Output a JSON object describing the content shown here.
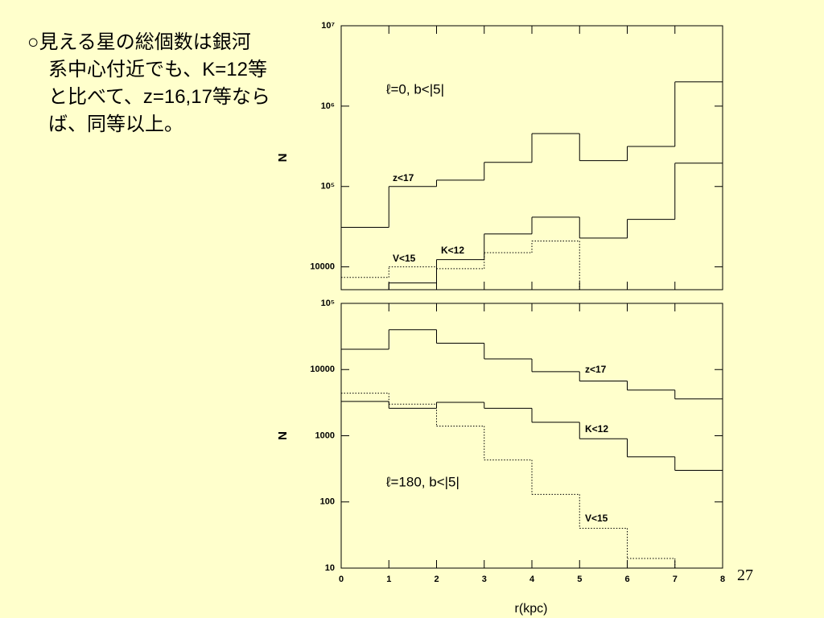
{
  "slide": {
    "lines": [
      "○見える星の総個数は銀河",
      "系中心付近でも、K=12等",
      "と比べて、z=16,17等なら",
      "ば、同等以上。"
    ],
    "page_number": "27"
  },
  "chart_data": [
    {
      "type": "histogram",
      "annotation": "ℓ=0,  b<|5|",
      "ylabel": "N",
      "log_y": true,
      "bins": [
        0,
        1,
        2,
        3,
        4,
        5,
        6,
        7,
        8
      ],
      "xlim": [
        0,
        8
      ],
      "xticks": [
        0,
        1,
        2,
        3,
        4,
        5,
        6,
        7,
        8
      ],
      "show_xtick_labels": false,
      "ylim": [
        5200,
        10000000
      ],
      "yticks": [
        10000,
        {
          "value": 100000,
          "label": "10⁵"
        },
        {
          "value": 1000000,
          "label": "10⁶"
        },
        {
          "value": 10000000,
          "label": "10⁷"
        }
      ],
      "series": [
        {
          "name": "z<17",
          "color": "#000000",
          "dash": "solid",
          "values": [
            31000,
            100000,
            120000,
            200000,
            455000,
            210000,
            315000,
            2000000
          ]
        },
        {
          "name": "K<12",
          "color": "#000000",
          "dash": "solid",
          "values": [
            null,
            6300,
            12300,
            25700,
            41500,
            22800,
            39000,
            195000
          ]
        },
        {
          "name": "V<15",
          "color": "#000000",
          "dash": "dotted",
          "values": [
            7400,
            10000,
            9500,
            15000,
            21000,
            null,
            null,
            null
          ]
        }
      ]
    },
    {
      "type": "histogram",
      "annotation": "ℓ=180,  b<|5|",
      "ylabel": "N",
      "xlabel": "r(kpc)",
      "log_y": true,
      "bins": [
        0,
        1,
        2,
        3,
        4,
        5,
        6,
        7,
        8
      ],
      "xlim": [
        0,
        8
      ],
      "xticks": [
        0,
        1,
        2,
        3,
        4,
        5,
        6,
        7,
        8
      ],
      "show_xtick_labels": true,
      "ylim": [
        10,
        100000
      ],
      "yticks": [
        10,
        100,
        1000,
        10000,
        {
          "value": 100000,
          "label": "10⁵"
        }
      ],
      "series": [
        {
          "name": "z<17",
          "color": "#000000",
          "dash": "solid",
          "values": [
            20300,
            40000,
            25000,
            14500,
            9300,
            6700,
            4900,
            3600
          ]
        },
        {
          "name": "K<12",
          "color": "#000000",
          "dash": "solid",
          "values": [
            3300,
            2600,
            3200,
            2600,
            1600,
            900,
            480,
            300
          ]
        },
        {
          "name": "V<15",
          "color": "#000000",
          "dash": "dotted",
          "values": [
            4400,
            3000,
            1400,
            430,
            130,
            40,
            14,
            null
          ]
        }
      ]
    }
  ]
}
